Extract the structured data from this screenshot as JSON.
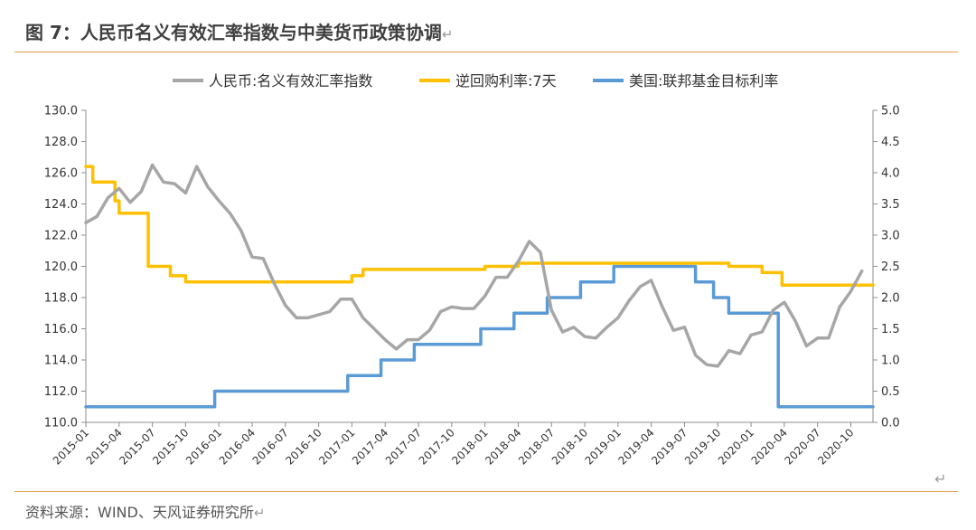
{
  "figure": {
    "title": "图 7：人民币名义有效汇率指数与中美货币政策协调",
    "source": "资料来源：WIND、天风证券研究所",
    "return_mark": "↵"
  },
  "chart_data": {
    "type": "line",
    "title": "",
    "xlabel": "",
    "y_left": {
      "label": "",
      "lim": [
        110,
        130
      ],
      "ticks": [
        "110.0",
        "112.0",
        "114.0",
        "116.0",
        "118.0",
        "120.0",
        "122.0",
        "124.0",
        "126.0",
        "128.0",
        "130.0"
      ]
    },
    "y_right": {
      "label": "",
      "lim": [
        0,
        5
      ],
      "ticks": [
        "0.0",
        "0.5",
        "1.0",
        "1.5",
        "2.0",
        "2.5",
        "3.0",
        "3.5",
        "4.0",
        "4.5",
        "5.0"
      ]
    },
    "x_range": [
      "2015-01",
      "2020-12"
    ],
    "x_ticks": [
      "2015-01",
      "2015-04",
      "2015-07",
      "2015-10",
      "2016-01",
      "2016-04",
      "2016-07",
      "2016-10",
      "2017-01",
      "2017-04",
      "2017-07",
      "2017-10",
      "2018-01",
      "2018-04",
      "2018-07",
      "2018-10",
      "2019-01",
      "2019-04",
      "2019-07",
      "2019-10",
      "2020-01",
      "2020-04",
      "2020-07",
      "2020-10"
    ],
    "legend_position": "top",
    "grid": false,
    "series": [
      {
        "name": "人民币:名义有效汇率指数",
        "axis": "left",
        "color": "#a6a6a6",
        "style": "line",
        "points": [
          [
            "2015-01",
            122.8
          ],
          [
            "2015-02",
            123.2
          ],
          [
            "2015-03",
            124.4
          ],
          [
            "2015-04",
            125.0
          ],
          [
            "2015-05",
            124.1
          ],
          [
            "2015-06",
            124.8
          ],
          [
            "2015-07",
            126.5
          ],
          [
            "2015-08",
            125.4
          ],
          [
            "2015-09",
            125.3
          ],
          [
            "2015-10",
            124.7
          ],
          [
            "2015-11",
            126.4
          ],
          [
            "2015-12",
            125.1
          ],
          [
            "2016-01",
            124.2
          ],
          [
            "2016-02",
            123.4
          ],
          [
            "2016-03",
            122.3
          ],
          [
            "2016-04",
            120.6
          ],
          [
            "2016-05",
            120.5
          ],
          [
            "2016-06",
            118.9
          ],
          [
            "2016-07",
            117.5
          ],
          [
            "2016-08",
            116.7
          ],
          [
            "2016-09",
            116.7
          ],
          [
            "2016-10",
            116.9
          ],
          [
            "2016-11",
            117.1
          ],
          [
            "2016-12",
            117.9
          ],
          [
            "2017-01",
            117.9
          ],
          [
            "2017-02",
            116.7
          ],
          [
            "2017-03",
            116.0
          ],
          [
            "2017-04",
            115.3
          ],
          [
            "2017-05",
            114.7
          ],
          [
            "2017-06",
            115.3
          ],
          [
            "2017-07",
            115.3
          ],
          [
            "2017-08",
            115.9
          ],
          [
            "2017-09",
            117.1
          ],
          [
            "2017-10",
            117.4
          ],
          [
            "2017-11",
            117.3
          ],
          [
            "2017-12",
            117.3
          ],
          [
            "2018-01",
            118.1
          ],
          [
            "2018-02",
            119.3
          ],
          [
            "2018-03",
            119.3
          ],
          [
            "2018-04",
            120.3
          ],
          [
            "2018-05",
            121.6
          ],
          [
            "2018-06",
            120.9
          ],
          [
            "2018-07",
            117.2
          ],
          [
            "2018-08",
            115.8
          ],
          [
            "2018-09",
            116.1
          ],
          [
            "2018-10",
            115.5
          ],
          [
            "2018-11",
            115.4
          ],
          [
            "2018-12",
            116.1
          ],
          [
            "2019-01",
            116.7
          ],
          [
            "2019-02",
            117.8
          ],
          [
            "2019-03",
            118.7
          ],
          [
            "2019-04",
            119.1
          ],
          [
            "2019-05",
            117.4
          ],
          [
            "2019-06",
            115.9
          ],
          [
            "2019-07",
            116.1
          ],
          [
            "2019-08",
            114.3
          ],
          [
            "2019-09",
            113.7
          ],
          [
            "2019-10",
            113.6
          ],
          [
            "2019-11",
            114.6
          ],
          [
            "2019-12",
            114.4
          ],
          [
            "2020-01",
            115.6
          ],
          [
            "2020-02",
            115.8
          ],
          [
            "2020-03",
            117.2
          ],
          [
            "2020-04",
            117.7
          ],
          [
            "2020-05",
            116.5
          ],
          [
            "2020-06",
            114.9
          ],
          [
            "2020-07",
            115.4
          ],
          [
            "2020-08",
            115.4
          ],
          [
            "2020-09",
            117.4
          ],
          [
            "2020-10",
            118.4
          ],
          [
            "2020-11",
            119.7
          ]
        ]
      },
      {
        "name": "逆回购利率:7天",
        "axis": "right",
        "color": "#ffc000",
        "style": "step",
        "points": [
          [
            "2015-01",
            4.1
          ],
          [
            "2015-01-20",
            3.85
          ],
          [
            "2015-03-20",
            3.55
          ],
          [
            "2015-04",
            3.35
          ],
          [
            "2015-06-20",
            2.5
          ],
          [
            "2015-08-20",
            2.35
          ],
          [
            "2015-10",
            2.25
          ],
          [
            "2017-01",
            2.35
          ],
          [
            "2017-02",
            2.45
          ],
          [
            "2018-01",
            2.5
          ],
          [
            "2018-04",
            2.55
          ],
          [
            "2019-11",
            2.5
          ],
          [
            "2020-02",
            2.4
          ],
          [
            "2020-03-25",
            2.2
          ],
          [
            "2020-12",
            2.2
          ]
        ]
      },
      {
        "name": "美国:联邦基金目标利率",
        "axis": "right",
        "color": "#5b9bd5",
        "style": "step",
        "points": [
          [
            "2015-01",
            0.25
          ],
          [
            "2015-12-20",
            0.5
          ],
          [
            "2016-12-20",
            0.75
          ],
          [
            "2017-03-20",
            1.0
          ],
          [
            "2017-06-20",
            1.25
          ],
          [
            "2017-12-20",
            1.5
          ],
          [
            "2018-03-20",
            1.75
          ],
          [
            "2018-06-20",
            2.0
          ],
          [
            "2018-09-20",
            2.25
          ],
          [
            "2018-12-20",
            2.5
          ],
          [
            "2019-07-31",
            2.25
          ],
          [
            "2019-09-20",
            2.0
          ],
          [
            "2019-10-31",
            1.75
          ],
          [
            "2020-03-03",
            1.75
          ],
          [
            "2020-03-15",
            0.25
          ],
          [
            "2020-12",
            0.25
          ]
        ]
      }
    ]
  }
}
